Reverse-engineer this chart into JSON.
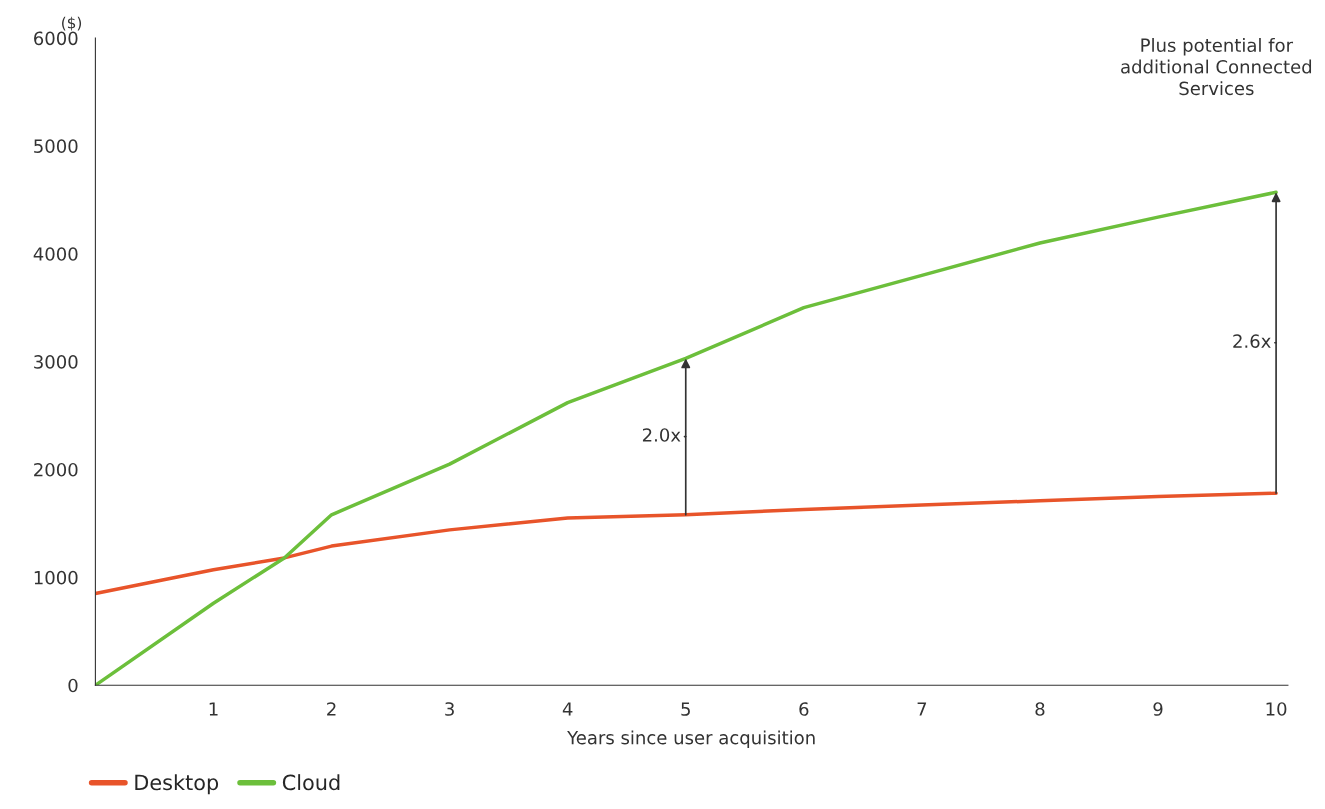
{
  "chart_data": {
    "type": "line",
    "ylabel": "($)",
    "xlabel": "Years since user acquisition",
    "x": [
      0,
      1,
      1.6,
      2,
      3,
      4,
      5,
      6,
      7,
      8,
      9,
      10
    ],
    "series": [
      {
        "name": "Desktop",
        "color": "#e8542a",
        "values": [
          850,
          1070,
          1180,
          1290,
          1440,
          1550,
          1580,
          1630,
          1670,
          1710,
          1750,
          1780
        ]
      },
      {
        "name": "Cloud",
        "color": "#6cbf3b",
        "values": [
          0,
          760,
          1180,
          1580,
          2050,
          2620,
          3030,
          3500,
          3800,
          4100,
          4340,
          4570
        ]
      }
    ],
    "xlim": [
      0,
      10.1
    ],
    "xticks": [
      1,
      2,
      3,
      4,
      5,
      6,
      7,
      8,
      9,
      10
    ],
    "ylim": [
      0,
      6000
    ],
    "yticks": [
      0,
      1000,
      2000,
      3000,
      4000,
      5000,
      6000
    ],
    "grid": false,
    "legend": "bottom left",
    "marker": "none",
    "line_style": "solid",
    "annotations": [
      "Plus potential for\nadditional Connected\nServices",
      {
        "text": "2.0x",
        "x": 5,
        "y": 3030
      },
      {
        "text": "2.6x",
        "x": 10,
        "y": 4570
      }
    ]
  }
}
